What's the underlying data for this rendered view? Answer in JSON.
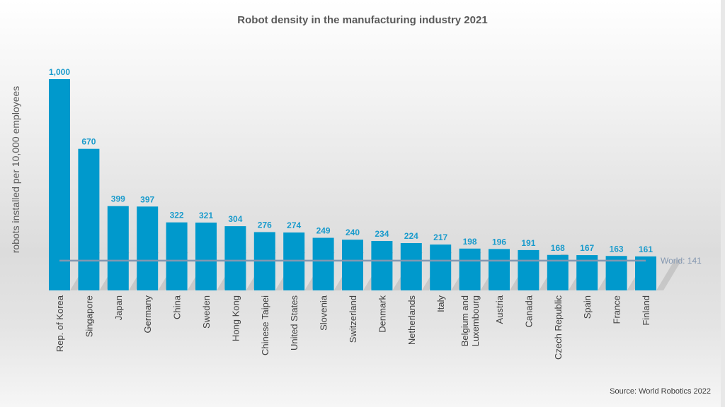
{
  "chart_data": {
    "type": "bar",
    "title": "Robot density in the manufacturing industry 2021",
    "ylabel": "robots installed per 10,000 employees",
    "xlabel": "",
    "categories": [
      "Rep. of Korea",
      "Singapore",
      "Japan",
      "Germany",
      "China",
      "Sweden",
      "Hong Kong",
      "Chinese Taipei",
      "United States",
      "Slovenia",
      "Switzerland",
      "Denmark",
      "Netherlands",
      "Italy",
      "Belgium and Luxembourg",
      "Austria",
      "Canada",
      "Czech Republic",
      "Spain",
      "France",
      "Finland"
    ],
    "values": [
      1000,
      670,
      399,
      397,
      322,
      321,
      304,
      276,
      274,
      249,
      240,
      234,
      224,
      217,
      198,
      196,
      191,
      168,
      167,
      163,
      161
    ],
    "data_labels": [
      "1,000",
      "670",
      "399",
      "397",
      "322",
      "321",
      "304",
      "276",
      "274",
      "249",
      "240",
      "234",
      "224",
      "217",
      "198",
      "196",
      "191",
      "168",
      "167",
      "163",
      "161"
    ],
    "reference_line": {
      "label": "World: 141",
      "value": 141,
      "color": "#8497b0"
    },
    "ylim": [
      0,
      1000
    ],
    "grid": false,
    "bar_color": "#0099cc",
    "label_color": "#1a9bcc",
    "source": "Source: World Robotics 2022"
  }
}
